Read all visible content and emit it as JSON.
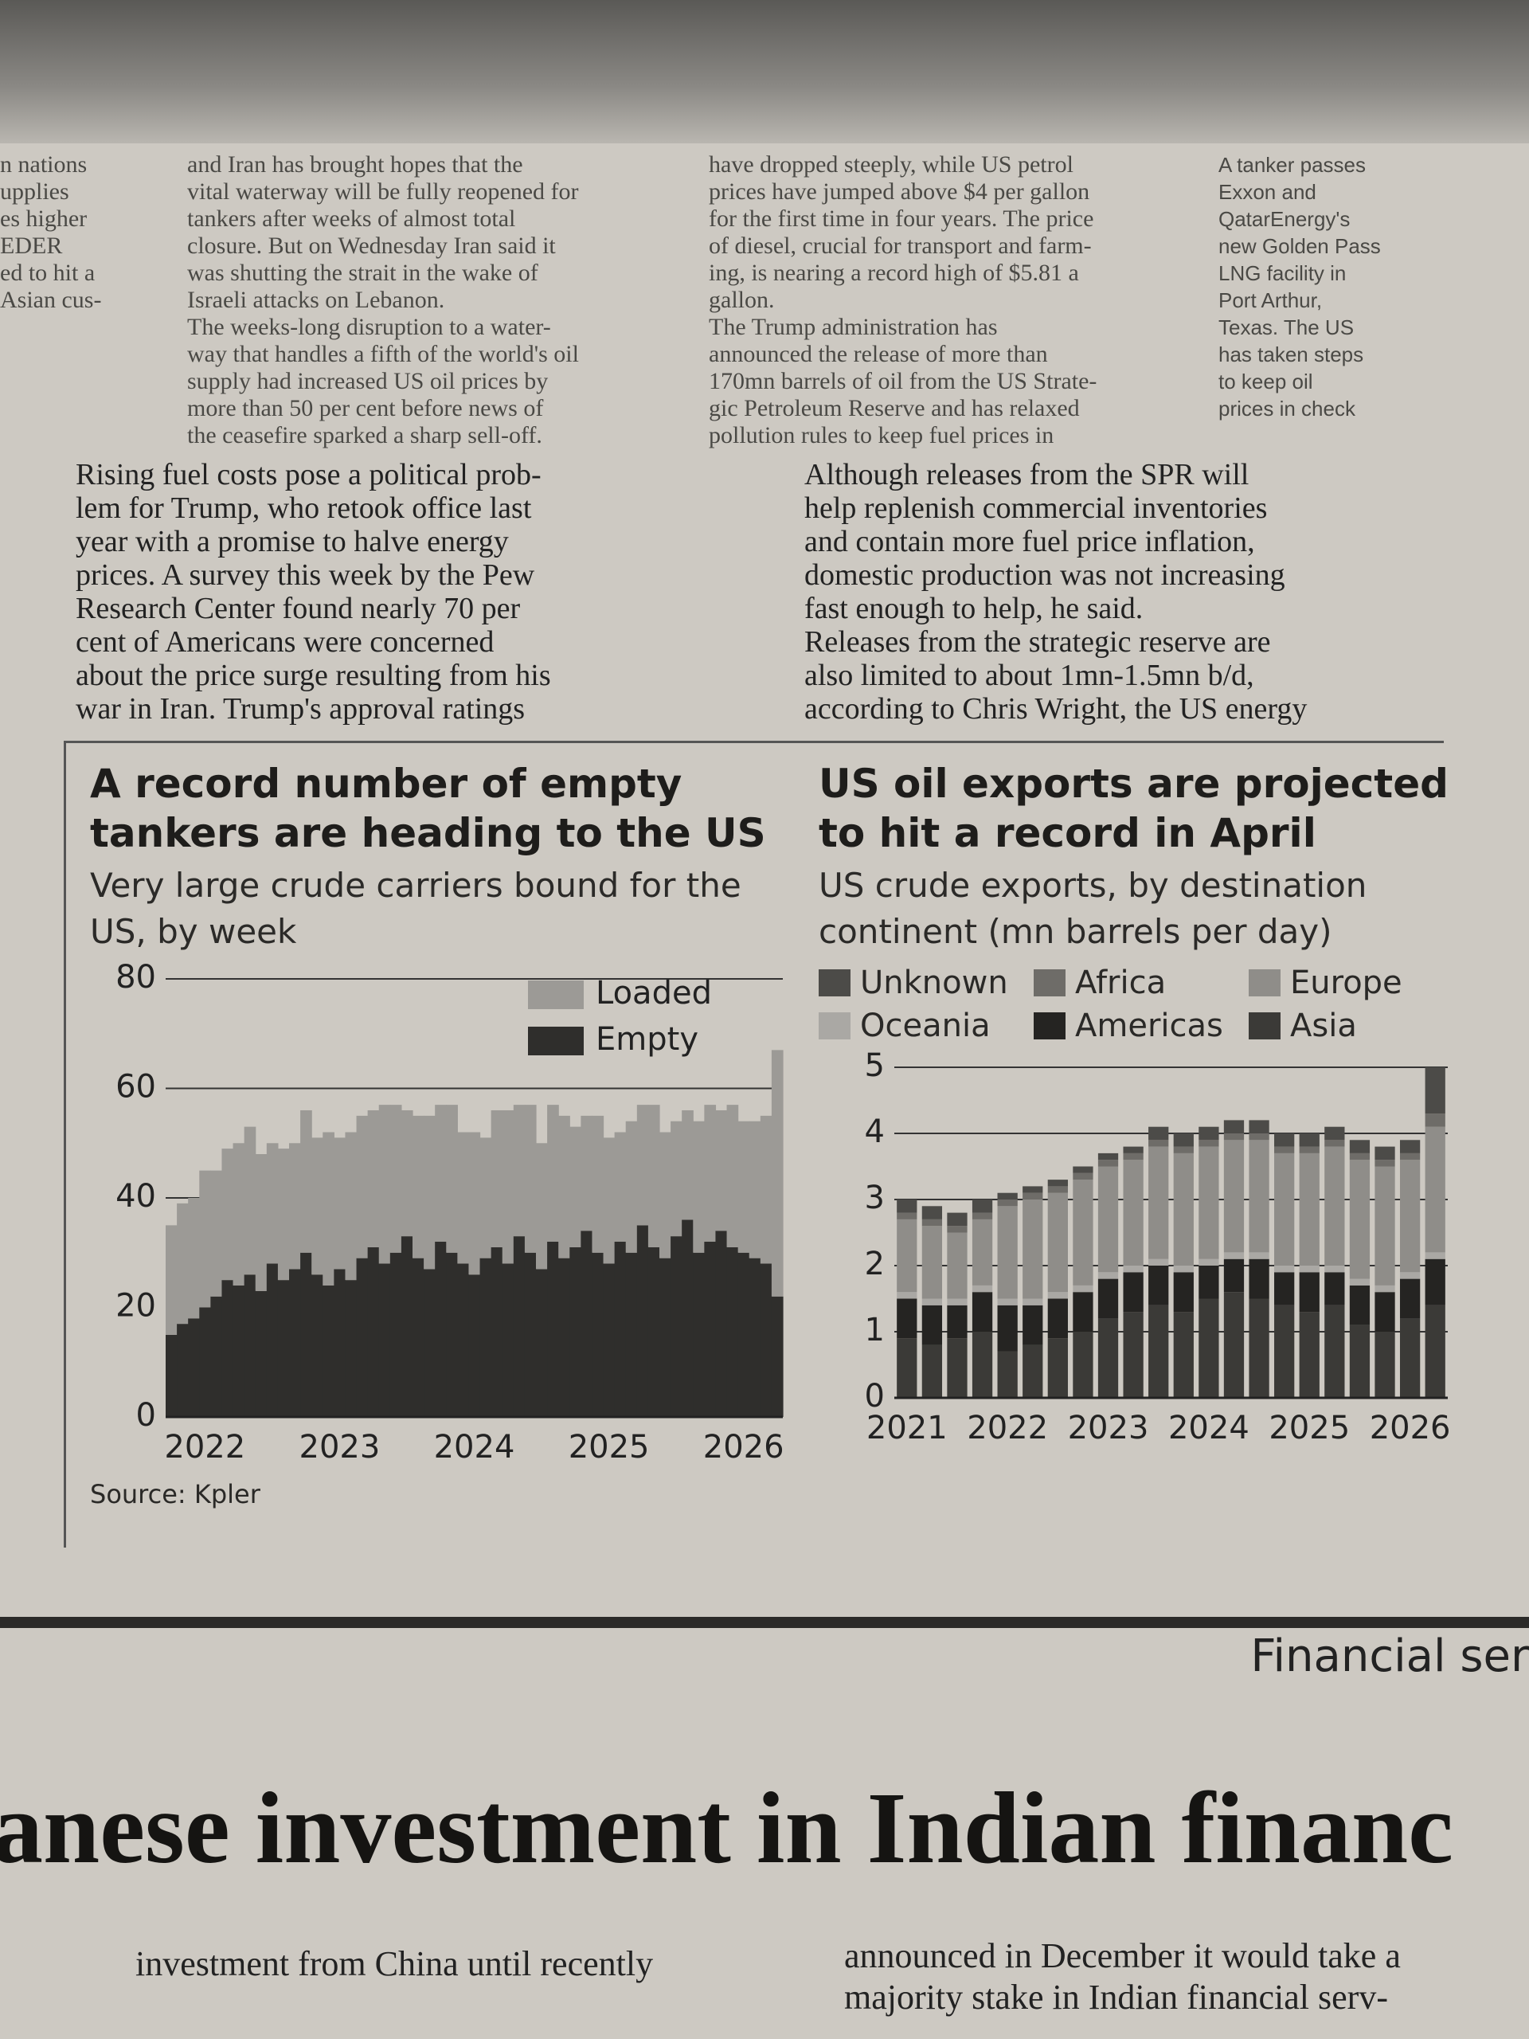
{
  "article": {
    "col1": [
      "n nations",
      "upplies",
      "es higher",
      "EDER",
      "ed to hit a",
      "Asian cus-"
    ],
    "col2": [
      "and Iran has brought hopes that the",
      "vital waterway will be fully reopened for",
      "tankers after weeks of almost total",
      "closure. But on Wednesday Iran said it",
      "was shutting the strait in the wake of",
      "Israeli attacks on Lebanon.",
      "The weeks-long disruption to a water-",
      "way that handles a fifth of the world's oil",
      "supply had increased US oil prices by",
      "more than 50 per cent before news of",
      "the ceasefire sparked a sharp sell-off."
    ],
    "col3": [
      "have dropped steeply, while US petrol",
      "prices have jumped above $4 per gallon",
      "for the first time in four years. The price",
      "of diesel, crucial for transport and farm-",
      "ing, is nearing a record high of $5.81 a",
      "gallon.",
      "The Trump administration has",
      "announced the release of more than",
      "170mn barrels of oil from the US Strate-",
      "gic Petroleum Reserve and has relaxed",
      "pollution rules to keep fuel prices in"
    ],
    "caption": [
      "A tanker passes",
      "Exxon and",
      "QatarEnergy's",
      "new Golden Pass",
      "LNG facility in",
      "Port Arthur,",
      "Texas. The US",
      "has taken steps",
      "to keep oil",
      "prices in check"
    ],
    "mid_left": [
      "Rising fuel costs pose a political prob-",
      "lem for Trump, who retook office last",
      "year with a promise to halve energy",
      "prices. A survey this week by the Pew",
      "Research Center found nearly 70 per",
      "cent of Americans were concerned",
      "about the price surge resulting from his",
      "war in Iran. Trump's approval ratings"
    ],
    "mid_right": [
      "Although releases from the SPR will",
      "help replenish commercial inventories",
      "and contain more fuel price inflation,",
      "domestic production was not increasing",
      "fast enough to help, he said.",
      "Releases from the strategic reserve are",
      "also limited to about 1mn-1.5mn b/d,",
      "according to Chris Wright, the US energy"
    ]
  },
  "section_label": "Financial ser",
  "headline": "anese investment in Indian financ",
  "footer_left": [
    "investment from China until recently"
  ],
  "footer_right": [
    "announced in December it would take a",
    "majority stake in Indian financial serv-"
  ],
  "chart_data": [
    {
      "type": "area",
      "title": "A record number of empty tankers are heading to the US",
      "subtitle": "Very large crude carriers bound for the US, by week",
      "source": "Source: Kpler",
      "categories": [
        null,
        null,
        null,
        "2022",
        null,
        null,
        null,
        null,
        null,
        null,
        null,
        null,
        null,
        null,
        null,
        "2023",
        null,
        null,
        null,
        null,
        null,
        null,
        null,
        null,
        null,
        null,
        null,
        "2024",
        null,
        null,
        null,
        null,
        null,
        null,
        null,
        null,
        null,
        null,
        null,
        "2025",
        null,
        null,
        null,
        null,
        null,
        null,
        null,
        null,
        null,
        null,
        null,
        "2026",
        null,
        null,
        null
      ],
      "series": [
        {
          "name": "Loaded",
          "color": "#9c9a96",
          "values": [
            20,
            22,
            22,
            25,
            23,
            24,
            26,
            27,
            25,
            22,
            24,
            23,
            26,
            25,
            28,
            24,
            27,
            26,
            25,
            29,
            27,
            23,
            26,
            28,
            25,
            27,
            24,
            26,
            22,
            25,
            28,
            24,
            27,
            23,
            25,
            26,
            22,
            21,
            25,
            23,
            20,
            24,
            22,
            26,
            23,
            21,
            20,
            24,
            25,
            22,
            26,
            24,
            25,
            27,
            45
          ]
        },
        {
          "name": "Empty",
          "color": "#2f2e2c",
          "values": [
            15,
            17,
            18,
            20,
            22,
            25,
            24,
            26,
            23,
            28,
            25,
            27,
            30,
            26,
            24,
            27,
            25,
            29,
            31,
            28,
            30,
            33,
            29,
            27,
            32,
            30,
            28,
            26,
            29,
            31,
            28,
            33,
            30,
            27,
            32,
            29,
            31,
            34,
            30,
            28,
            32,
            30,
            35,
            31,
            29,
            33,
            36,
            30,
            32,
            34,
            31,
            30,
            29,
            28,
            22
          ]
        }
      ],
      "ylim": [
        0,
        80
      ],
      "yticks": [
        0,
        20,
        40,
        60,
        80
      ],
      "grid": true,
      "legend": "upper right"
    },
    {
      "type": "bar",
      "title": "US oil exports are projected to hit a record in April",
      "subtitle": "US crude exports, by destination continent (mn barrels per day)",
      "categories": [
        "2021",
        null,
        null,
        null,
        "2022",
        null,
        null,
        null,
        "2023",
        null,
        null,
        null,
        "2024",
        null,
        null,
        null,
        "2025",
        null,
        null,
        null,
        "2026",
        null
      ],
      "series": [
        {
          "name": "Unknown",
          "color": "#4c4b48",
          "values": [
            0.2,
            0.2,
            0.2,
            0.2,
            0.1,
            0.1,
            0.1,
            0.1,
            0.1,
            0.1,
            0.2,
            0.2,
            0.2,
            0.2,
            0.2,
            0.2,
            0.2,
            0.2,
            0.2,
            0.2,
            0.2,
            0.7
          ]
        },
        {
          "name": "Africa",
          "color": "#6e6c68",
          "values": [
            0.1,
            0.1,
            0.1,
            0.1,
            0.1,
            0.1,
            0.1,
            0.1,
            0.1,
            0.1,
            0.1,
            0.1,
            0.1,
            0.1,
            0.1,
            0.1,
            0.1,
            0.1,
            0.1,
            0.1,
            0.1,
            0.2
          ]
        },
        {
          "name": "Europe",
          "color": "#8f8d89",
          "values": [
            1.1,
            1.1,
            1.0,
            1.0,
            1.4,
            1.5,
            1.5,
            1.6,
            1.6,
            1.6,
            1.7,
            1.7,
            1.7,
            1.7,
            1.7,
            1.7,
            1.7,
            1.8,
            1.8,
            1.8,
            1.7,
            1.9
          ]
        },
        {
          "name": "Oceania",
          "color": "#aaa8a4",
          "values": [
            0.1,
            0.1,
            0.1,
            0.1,
            0.1,
            0.1,
            0.1,
            0.1,
            0.1,
            0.1,
            0.1,
            0.1,
            0.1,
            0.1,
            0.1,
            0.1,
            0.1,
            0.1,
            0.1,
            0.1,
            0.1,
            0.1
          ]
        },
        {
          "name": "Americas",
          "color": "#252422",
          "values": [
            0.6,
            0.6,
            0.5,
            0.6,
            0.7,
            0.6,
            0.6,
            0.6,
            0.6,
            0.6,
            0.6,
            0.6,
            0.5,
            0.5,
            0.6,
            0.5,
            0.6,
            0.5,
            0.6,
            0.6,
            0.6,
            0.7
          ]
        },
        {
          "name": "Asia",
          "color": "#3b3a37",
          "values": [
            0.9,
            0.8,
            0.9,
            1.0,
            0.7,
            0.8,
            0.9,
            1.0,
            1.2,
            1.3,
            1.4,
            1.3,
            1.5,
            1.6,
            1.5,
            1.4,
            1.3,
            1.4,
            1.1,
            1.0,
            1.2,
            1.4
          ]
        }
      ],
      "ylim": [
        0,
        5
      ],
      "yticks": [
        0,
        1,
        2,
        3,
        4,
        5
      ],
      "grid": true,
      "legend": "top"
    }
  ]
}
